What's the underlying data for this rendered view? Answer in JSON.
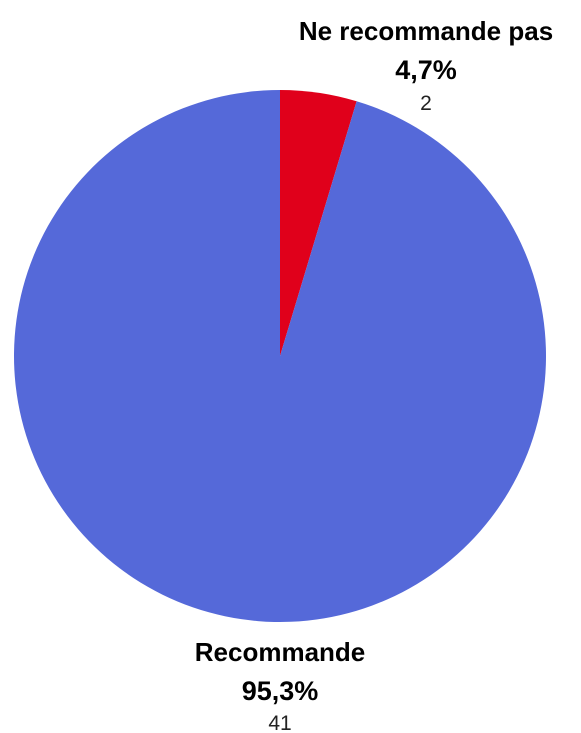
{
  "chart_data": {
    "type": "pie",
    "slices": [
      {
        "label": "Ne recommande pas",
        "percent_label": "4,7%",
        "count_label": "2",
        "value": 2,
        "color": "#e0001b"
      },
      {
        "label": "Recommande",
        "percent_label": "95,3%",
        "count_label": "41",
        "value": 41,
        "color": "#5569d9"
      }
    ],
    "start_angle_deg": 0,
    "direction": "clockwise",
    "legend": "none"
  }
}
